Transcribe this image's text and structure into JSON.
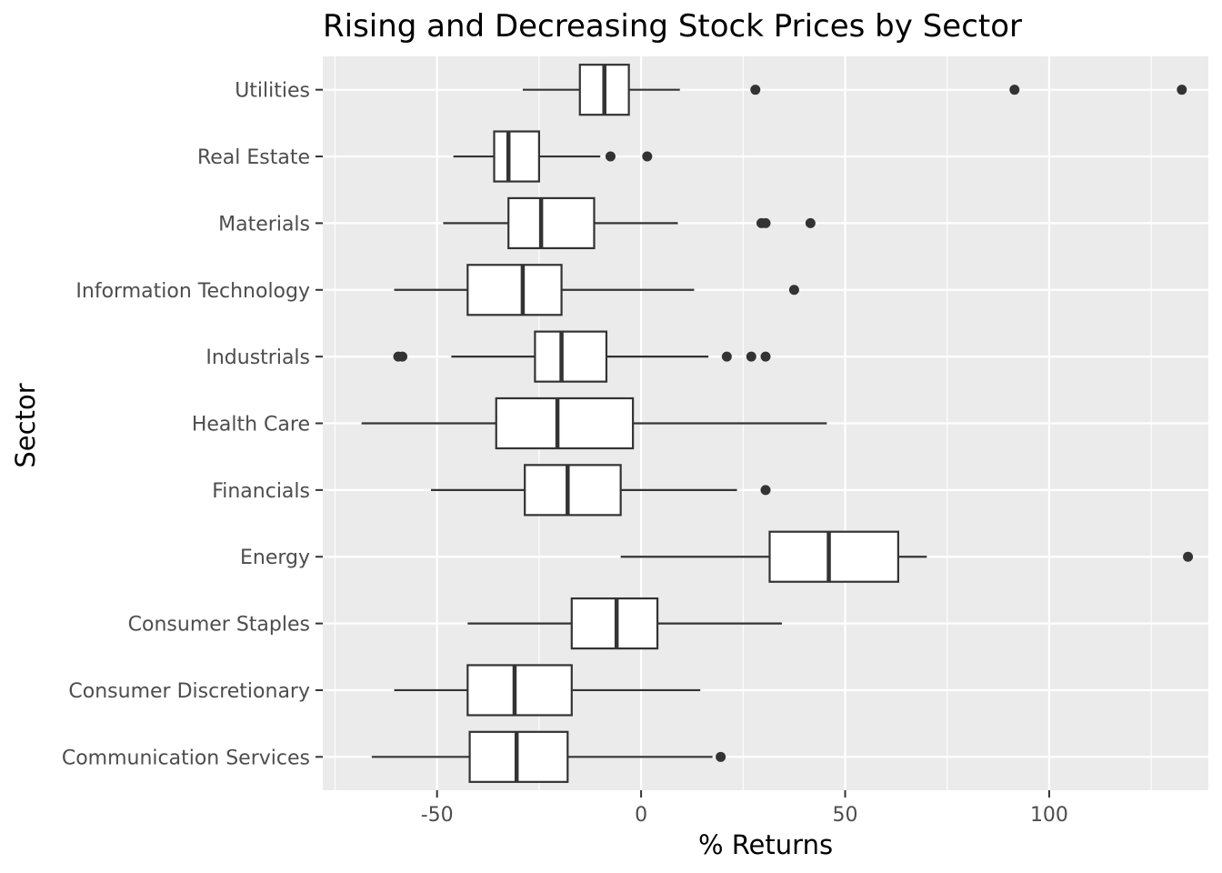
{
  "chart_data": {
    "type": "boxplot",
    "orientation": "horizontal",
    "title": "Rising and Decreasing Stock Prices by Sector",
    "xlabel": "% Returns",
    "ylabel": "Sector",
    "xlim": [
      -78,
      139
    ],
    "x_ticks": [
      -50,
      0,
      50,
      100
    ],
    "x_tick_labels": [
      "-50",
      "0",
      "50",
      "100"
    ],
    "grid": true,
    "legend": "none",
    "colors": {
      "panel": "#ebebeb",
      "grid": "#ffffff",
      "box_fill": "#ffffff",
      "box_stroke": "#333333",
      "outlier": "#333333",
      "tick_text": "#4d4d4d"
    },
    "categories": [
      "Communication Services",
      "Consumer Discretionary",
      "Consumer Staples",
      "Energy",
      "Financials",
      "Health Care",
      "Industrials",
      "Information Technology",
      "Materials",
      "Real Estate",
      "Utilities"
    ],
    "boxes": [
      {
        "sector": "Communication Services",
        "whisker_low": -66,
        "q1": -42,
        "median": -30.5,
        "q3": -18,
        "whisker_high": 17.5,
        "outliers": [
          19.5
        ]
      },
      {
        "sector": "Consumer Discretionary",
        "whisker_low": -60.5,
        "q1": -42.5,
        "median": -31,
        "q3": -17,
        "whisker_high": 14.5,
        "outliers": []
      },
      {
        "sector": "Consumer Staples",
        "whisker_low": -42.5,
        "q1": -17,
        "median": -6,
        "q3": 4,
        "whisker_high": 34.5,
        "outliers": []
      },
      {
        "sector": "Energy",
        "whisker_low": -5,
        "q1": 31.5,
        "median": 46,
        "q3": 63,
        "whisker_high": 70,
        "outliers": [
          134
        ]
      },
      {
        "sector": "Financials",
        "whisker_low": -51.5,
        "q1": -28.5,
        "median": -18,
        "q3": -5,
        "whisker_high": 23.5,
        "outliers": [
          30.5
        ]
      },
      {
        "sector": "Health Care",
        "whisker_low": -68.5,
        "q1": -35.5,
        "median": -20.5,
        "q3": -2,
        "whisker_high": 45.5,
        "outliers": []
      },
      {
        "sector": "Industrials",
        "whisker_low": -46.5,
        "q1": -26,
        "median": -19.5,
        "q3": -8.5,
        "whisker_high": 16.5,
        "outliers": [
          -59.5,
          -58.5,
          21,
          27,
          30.5
        ]
      },
      {
        "sector": "Information Technology",
        "whisker_low": -60.5,
        "q1": -42.5,
        "median": -29,
        "q3": -19.5,
        "whisker_high": 13,
        "outliers": [
          37.5
        ]
      },
      {
        "sector": "Materials",
        "whisker_low": -48.5,
        "q1": -32.5,
        "median": -24.5,
        "q3": -11.5,
        "whisker_high": 9,
        "outliers": [
          29.5,
          30.5,
          41.5
        ]
      },
      {
        "sector": "Real Estate",
        "whisker_low": -46,
        "q1": -36,
        "median": -32.5,
        "q3": -25,
        "whisker_high": -10,
        "outliers": [
          -7.5,
          1.5
        ]
      },
      {
        "sector": "Utilities",
        "whisker_low": -29,
        "q1": -15,
        "median": -9,
        "q3": -3,
        "whisker_high": 9.5,
        "outliers": [
          28,
          91.5,
          132.5
        ]
      }
    ]
  }
}
